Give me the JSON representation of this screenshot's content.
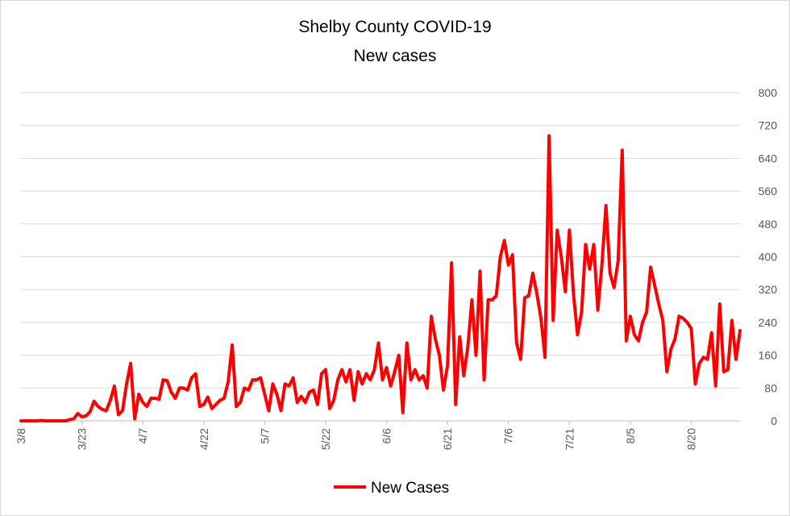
{
  "chart_data": {
    "type": "line",
    "title": "Shelby County COVID-19",
    "subtitle": "New cases",
    "xlabel": "",
    "ylabel": "",
    "ylim": [
      0,
      800
    ],
    "y_ticks": [
      0,
      80,
      160,
      240,
      320,
      400,
      480,
      560,
      640,
      720,
      800
    ],
    "x_tick_labels": [
      "3/8",
      "3/23",
      "4/7",
      "4/22",
      "5/7",
      "5/22",
      "6/6",
      "6/21",
      "7/6",
      "7/21",
      "8/5",
      "8/20"
    ],
    "grid": "horizontal",
    "y_axis_side": "right",
    "legend_position": "bottom",
    "line_color": "#ff0000",
    "series": [
      {
        "name": "New Cases",
        "start": "3/8",
        "values": [
          0,
          0,
          0,
          0,
          0,
          1,
          0,
          0,
          0,
          0,
          0,
          0,
          3,
          5,
          18,
          10,
          12,
          22,
          48,
          35,
          28,
          25,
          50,
          85,
          15,
          25,
          90,
          140,
          5,
          65,
          45,
          35,
          55,
          55,
          53,
          100,
          98,
          70,
          55,
          80,
          80,
          75,
          105,
          115,
          35,
          40,
          58,
          30,
          40,
          50,
          55,
          95,
          185,
          35,
          45,
          80,
          75,
          100,
          100,
          105,
          65,
          25,
          90,
          65,
          25,
          90,
          85,
          105,
          45,
          60,
          45,
          70,
          75,
          40,
          115,
          125,
          30,
          50,
          100,
          125,
          95,
          125,
          50,
          120,
          90,
          115,
          100,
          125,
          190,
          100,
          130,
          85,
          120,
          160,
          20,
          190,
          100,
          125,
          100,
          110,
          80,
          255,
          200,
          160,
          75,
          135,
          385,
          40,
          205,
          110,
          180,
          295,
          160,
          365,
          100,
          295,
          295,
          305,
          400,
          440,
          380,
          405,
          190,
          150,
          300,
          305,
          360,
          310,
          250,
          155,
          695,
          245,
          465,
          400,
          315,
          465,
          310,
          210,
          265,
          430,
          370,
          430,
          270,
          380,
          525,
          360,
          325,
          390,
          660,
          195,
          255,
          210,
          195,
          240,
          265,
          375,
          330,
          285,
          245,
          120,
          175,
          200,
          255,
          250,
          240,
          225,
          90,
          140,
          155,
          150,
          215,
          85,
          285,
          120,
          125,
          245,
          150,
          220
        ]
      }
    ]
  }
}
